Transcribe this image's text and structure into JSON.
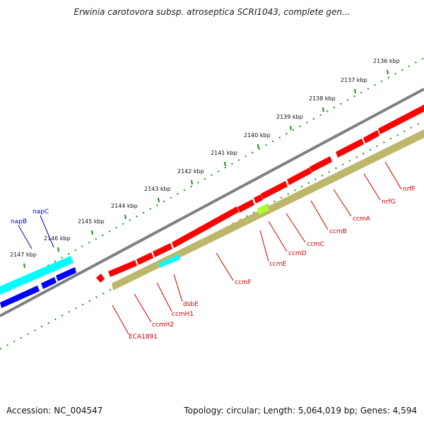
{
  "title": "Erwinia carotovora subsp. atroseptica SCRI1043, complete gen...",
  "footer": {
    "accession": "Accession: NC_004547",
    "topology": "Topology: circular; Length: 5,064,019 bp; Genes: 4,594"
  },
  "colors": {
    "backbone": "#808080",
    "forward_gene": "#ff0000",
    "reverse_gene": "#0000ff",
    "cyan_feature": "#00ffff",
    "olive_feature": "#bdb76b",
    "green_feature": "#adff2f",
    "ticks": "#228b22",
    "red_label": "#cc0000",
    "blue_label": "#0000cc"
  },
  "kbp_labels": [
    "2136 kbp",
    "2137 kbp",
    "2138 kbp",
    "2139 kbp",
    "2140 kbp",
    "2141 kbp",
    "2142 kbp",
    "2143 kbp",
    "2144 kbp",
    "2145 kbp",
    "2146 kbp",
    "2147 kbp"
  ],
  "gene_labels": {
    "red": [
      "nrfF",
      "nrfG",
      "ccmA",
      "ccmB",
      "ccmC",
      "ccmD",
      "ccmE",
      "ccmF",
      "dsbE",
      "ccmH1",
      "ccmH2",
      "ECA1891"
    ],
    "blue": [
      "napB",
      "napC"
    ]
  }
}
